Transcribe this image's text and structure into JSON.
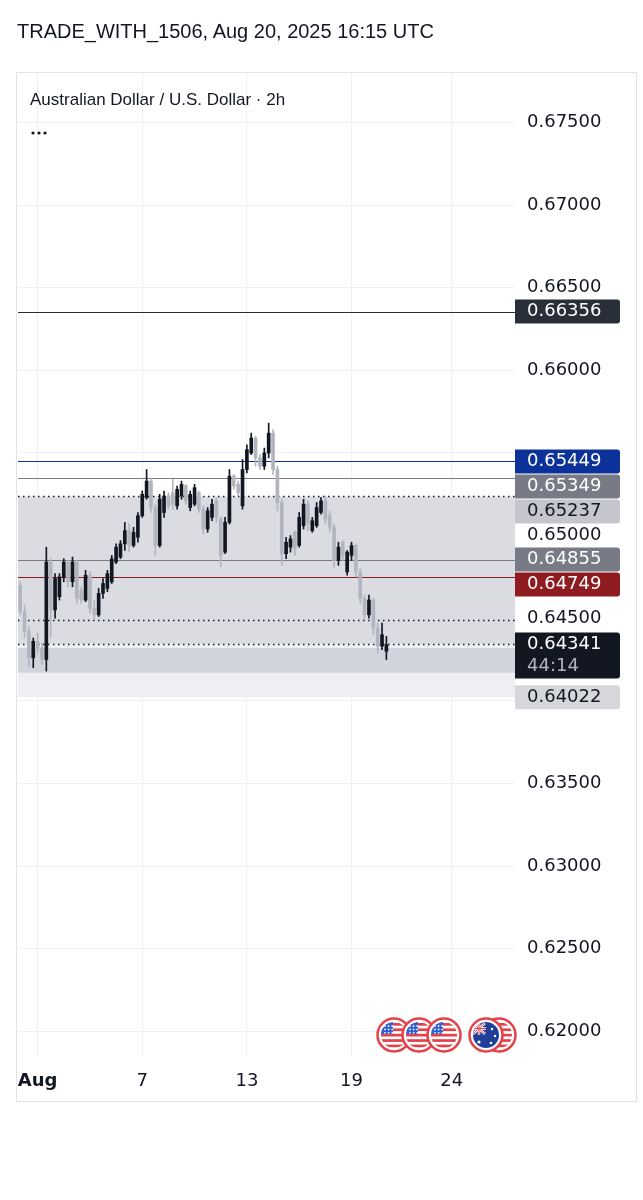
{
  "chart_data": {
    "type": "candlestick",
    "title": "Australian Dollar / U.S. Dollar · 2h",
    "annotations": [
      "TRADE_WITH_1506, Aug 20, 2025 16:15 UTC"
    ],
    "categories": [
      null,
      null,
      null,
      null,
      "Aug",
      null,
      null,
      null,
      null,
      null,
      null,
      null,
      null,
      null,
      null,
      null,
      null,
      null,
      null,
      null,
      null,
      null,
      null,
      null,
      null,
      null,
      null,
      null,
      "7",
      null,
      null,
      null,
      null,
      null,
      null,
      null,
      null,
      null,
      null,
      null,
      null,
      null,
      null,
      null,
      null,
      null,
      null,
      null,
      null,
      null,
      null,
      null,
      "13",
      null,
      null,
      null,
      null,
      null,
      null,
      null,
      null,
      null,
      null,
      null,
      null,
      null,
      null,
      null,
      null,
      null,
      null,
      null,
      null,
      null,
      null,
      null,
      "19",
      null,
      null,
      null,
      null,
      null,
      null,
      null,
      null,
      null,
      null,
      null,
      null,
      null,
      null,
      null,
      null,
      null,
      null,
      null,
      null,
      null,
      null,
      "24",
      null,
      null,
      null,
      null,
      null,
      null,
      null,
      null,
      null,
      null,
      null,
      null,
      null,
      null
    ],
    "ohlc": [
      [
        0.647,
        0.6472,
        0.6452,
        0.6454
      ],
      [
        0.6454,
        0.6458,
        0.6438,
        0.6442
      ],
      [
        0.6442,
        0.6445,
        0.6421,
        0.6426
      ],
      [
        0.6426,
        0.6438,
        0.642,
        0.6436
      ],
      [
        0.6436,
        0.6441,
        0.6429,
        0.6432
      ],
      [
        0.6432,
        0.6435,
        0.6422,
        0.6425
      ],
      [
        0.6425,
        0.6493,
        0.6418,
        0.6484
      ],
      [
        0.6484,
        0.6486,
        0.6438,
        0.6455
      ],
      [
        0.6455,
        0.6477,
        0.645,
        0.6474
      ],
      [
        0.6463,
        0.6477,
        0.6461,
        0.6475
      ],
      [
        0.6475,
        0.6486,
        0.6472,
        0.6484
      ],
      [
        0.6484,
        0.6485,
        0.6469,
        0.6472
      ],
      [
        0.6472,
        0.6487,
        0.6469,
        0.6484
      ],
      [
        0.6484,
        0.6485,
        0.6459,
        0.6462
      ],
      [
        0.6467,
        0.6469,
        0.6459,
        0.6461
      ],
      [
        0.6461,
        0.6479,
        0.646,
        0.6476
      ],
      [
        0.6476,
        0.6478,
        0.6453,
        0.6456
      ],
      [
        0.6456,
        0.6461,
        0.6449,
        0.6452
      ],
      [
        0.6452,
        0.6468,
        0.6451,
        0.6465
      ],
      [
        0.6465,
        0.6474,
        0.6462,
        0.6471
      ],
      [
        0.6468,
        0.6479,
        0.6466,
        0.6477
      ],
      [
        0.6472,
        0.6488,
        0.6471,
        0.6486
      ],
      [
        0.6484,
        0.6495,
        0.6483,
        0.6493
      ],
      [
        0.6487,
        0.6497,
        0.6486,
        0.6495
      ],
      [
        0.6495,
        0.6508,
        0.6491,
        0.6503
      ],
      [
        0.6503,
        0.6507,
        0.649,
        0.6494
      ],
      [
        0.6494,
        0.6505,
        0.6493,
        0.6502
      ],
      [
        0.6499,
        0.6514,
        0.6496,
        0.6512
      ],
      [
        0.6512,
        0.6527,
        0.6511,
        0.6525
      ],
      [
        0.6523,
        0.654,
        0.6522,
        0.6533
      ],
      [
        0.6533,
        0.6535,
        0.6514,
        0.6517
      ],
      [
        0.6517,
        0.6519,
        0.6488,
        0.6494
      ],
      [
        0.6494,
        0.6525,
        0.6493,
        0.6522
      ],
      [
        0.6514,
        0.6527,
        0.6511,
        0.6524
      ],
      [
        0.6524,
        0.6526,
        0.6516,
        0.6518
      ],
      [
        0.6526,
        0.6534,
        0.6516,
        0.6519
      ],
      [
        0.6518,
        0.653,
        0.6516,
        0.6528
      ],
      [
        0.6524,
        0.6533,
        0.6522,
        0.6531
      ],
      [
        0.653,
        0.6531,
        0.6519,
        0.6521
      ],
      [
        0.6517,
        0.6527,
        0.6515,
        0.6525
      ],
      [
        0.6519,
        0.6531,
        0.6518,
        0.6529
      ],
      [
        0.6526,
        0.6527,
        0.6514,
        0.6516
      ],
      [
        0.6516,
        0.6518,
        0.6501,
        0.6504
      ],
      [
        0.6504,
        0.6517,
        0.6502,
        0.6515
      ],
      [
        0.6511,
        0.6522,
        0.6509,
        0.6519
      ],
      [
        0.6521,
        0.6523,
        0.6508,
        0.6511
      ],
      [
        0.651,
        0.6511,
        0.6481,
        0.6488
      ],
      [
        0.649,
        0.6511,
        0.6489,
        0.6508
      ],
      [
        0.6508,
        0.654,
        0.6507,
        0.6536
      ],
      [
        0.6536,
        0.6537,
        0.6528,
        0.653
      ],
      [
        0.6531,
        0.6533,
        0.6524,
        0.6526
      ],
      [
        0.6518,
        0.6546,
        0.6516,
        0.654
      ],
      [
        0.654,
        0.6555,
        0.6538,
        0.6552
      ],
      [
        0.655,
        0.6562,
        0.6549,
        0.6559
      ],
      [
        0.6559,
        0.656,
        0.6542,
        0.6547
      ],
      [
        0.6547,
        0.6549,
        0.654,
        0.6542
      ],
      [
        0.6542,
        0.6553,
        0.654,
        0.655
      ],
      [
        0.655,
        0.6568,
        0.6547,
        0.6562
      ],
      [
        0.6562,
        0.6564,
        0.6537,
        0.654
      ],
      [
        0.654,
        0.6542,
        0.6515,
        0.652
      ],
      [
        0.652,
        0.6522,
        0.6482,
        0.6489
      ],
      [
        0.6489,
        0.6499,
        0.6486,
        0.6496
      ],
      [
        0.6493,
        0.65,
        0.649,
        0.6498
      ],
      [
        0.6502,
        0.6503,
        0.6488,
        0.6492
      ],
      [
        0.6494,
        0.6514,
        0.6493,
        0.6511
      ],
      [
        0.6506,
        0.6522,
        0.6504,
        0.6519
      ],
      [
        0.6519,
        0.6521,
        0.6503,
        0.6507
      ],
      [
        0.6503,
        0.6511,
        0.6502,
        0.6509
      ],
      [
        0.6506,
        0.652,
        0.6505,
        0.6517
      ],
      [
        0.6514,
        0.6523,
        0.6513,
        0.6521
      ],
      [
        0.6521,
        0.6524,
        0.6507,
        0.651
      ],
      [
        0.6512,
        0.6515,
        0.6502,
        0.6505
      ],
      [
        0.6505,
        0.6507,
        0.6481,
        0.6485
      ],
      [
        0.6485,
        0.6496,
        0.6482,
        0.6493
      ],
      [
        0.6496,
        0.6497,
        0.6485,
        0.6488
      ],
      [
        0.6478,
        0.6491,
        0.6476,
        0.649
      ],
      [
        0.6488,
        0.6496,
        0.6485,
        0.6494
      ],
      [
        0.6494,
        0.6495,
        0.6475,
        0.6478
      ],
      [
        0.6478,
        0.648,
        0.6459,
        0.6462
      ],
      [
        0.6462,
        0.6464,
        0.6449,
        0.6452
      ],
      [
        0.6452,
        0.6464,
        0.645,
        0.6461
      ],
      [
        0.6461,
        0.6462,
        0.644,
        0.6444
      ],
      [
        0.6444,
        0.6447,
        0.6429,
        0.6433
      ],
      [
        0.6433,
        0.6447,
        0.6431,
        0.644
      ],
      [
        0.643,
        0.6439,
        0.6425,
        0.6434
      ],
      null,
      null,
      null,
      null,
      null,
      null,
      null,
      null,
      null,
      null,
      null,
      null,
      null,
      null,
      null,
      null,
      null,
      null,
      null,
      null,
      null,
      null,
      null,
      null,
      null,
      null,
      null,
      null,
      null
    ],
    "colors": [
      "#b2b5be",
      "#b2b5be",
      "#b2b5be",
      "#131722",
      "#b2b5be",
      "#b2b5be",
      "#131722",
      "#b2b5be",
      "#131722",
      "#131722",
      "#131722",
      "#b2b5be",
      "#131722",
      "#b2b5be",
      "#b2b5be",
      "#131722",
      "#b2b5be",
      "#b2b5be",
      "#131722",
      "#131722",
      "#131722",
      "#131722",
      "#131722",
      "#131722",
      "#131722",
      "#b2b5be",
      "#131722",
      "#131722",
      "#131722",
      "#131722",
      "#b2b5be",
      "#b2b5be",
      "#131722",
      "#131722",
      "#b2b5be",
      "#b2b5be",
      "#131722",
      "#131722",
      "#b2b5be",
      "#131722",
      "#131722",
      "#b2b5be",
      "#b2b5be",
      "#131722",
      "#131722",
      "#b2b5be",
      "#b2b5be",
      "#131722",
      "#131722",
      "#b2b5be",
      "#b2b5be",
      "#131722",
      "#131722",
      "#131722",
      "#b2b5be",
      "#b2b5be",
      "#131722",
      "#131722",
      "#b2b5be",
      "#b2b5be",
      "#b2b5be",
      "#131722",
      "#131722",
      "#b2b5be",
      "#131722",
      "#131722",
      "#b2b5be",
      "#131722",
      "#131722",
      "#131722",
      "#b2b5be",
      "#b2b5be",
      "#b2b5be",
      "#131722",
      "#b2b5be",
      "#131722",
      "#131722",
      "#b2b5be",
      "#b2b5be",
      "#b2b5be",
      "#131722",
      "#b2b5be",
      "#b2b5be",
      "#131722",
      "#131722",
      null,
      null,
      null,
      null,
      null,
      null,
      null,
      null,
      null,
      null,
      null,
      null,
      null,
      null,
      null,
      null,
      null,
      null,
      null,
      null,
      null,
      null,
      null,
      null,
      null,
      null,
      null,
      null,
      null
    ],
    "ylim": [
      0.6185,
      0.678
    ],
    "yticks": [
      {
        "value": 0.62,
        "label": "0.62000"
      },
      {
        "value": 0.625,
        "label": "0.62500"
      },
      {
        "value": 0.63,
        "label": "0.63000"
      },
      {
        "value": 0.635,
        "label": "0.63500"
      },
      {
        "value": 0.64,
        "label": null
      },
      {
        "value": 0.645,
        "label": "0.64500"
      },
      {
        "value": 0.65,
        "label": "0.65000"
      },
      {
        "value": 0.655,
        "label": null
      },
      {
        "value": 0.66,
        "label": "0.66000"
      },
      {
        "value": 0.665,
        "label": "0.66500"
      },
      {
        "value": 0.67,
        "label": "0.67000"
      },
      {
        "value": 0.675,
        "label": "0.67500"
      }
    ],
    "grid": true,
    "bands": [
      {
        "axis": "y",
        "from": 0.64341,
        "to": 0.65237,
        "color": "#dadce2",
        "label": "0.65237"
      },
      {
        "axis": "y",
        "from": 0.64341,
        "to": 0.64022,
        "color": "#eeeff2",
        "label": "0.64022"
      },
      {
        "axis": "y",
        "from": 0.6417,
        "to": 0.6432,
        "color": "#d1d4dc"
      }
    ],
    "ref_lines": [
      {
        "axis": "y",
        "value": 0.66356,
        "label": "0.66356",
        "color": "#2a2e39"
      },
      {
        "axis": "y",
        "value": 0.65449,
        "label": "0.65449",
        "color": "#0c3299"
      },
      {
        "axis": "y",
        "value": 0.65349,
        "label": "0.65349",
        "color": "#787b86"
      },
      {
        "axis": "y",
        "value": 0.65237,
        "color": "#131722",
        "line_style": "dotted"
      },
      {
        "axis": "y",
        "value": 0.64855,
        "label": "0.64855",
        "color": "#787b86"
      },
      {
        "axis": "y",
        "value": 0.64749,
        "label": "0.64749",
        "color": "#8e1b20"
      },
      {
        "axis": "y",
        "value": 0.6449,
        "color": "#131722",
        "line_style": "dotted"
      },
      {
        "axis": "y",
        "value": 0.64341,
        "label": "0.64341\n44:14",
        "color": "#131722",
        "line_style": "dotted"
      }
    ]
  }
}
